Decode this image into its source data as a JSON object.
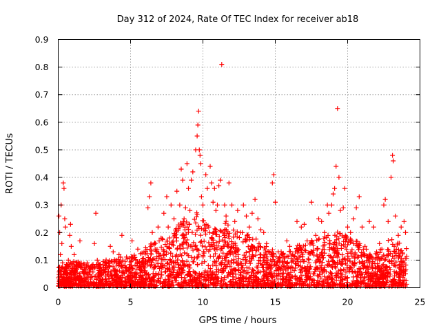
{
  "chart_data": {
    "type": "scatter",
    "title": "Day 312 of 2024, Rate Of TEC Index for receiver ab18",
    "xlabel": "GPS time / hours",
    "ylabel": "ROTI / TECUs",
    "xlim": [
      0,
      25
    ],
    "ylim": [
      0,
      0.9
    ],
    "xticks": [
      0,
      5,
      10,
      15,
      20,
      25
    ],
    "yticks": [
      0,
      0.1,
      0.2,
      0.3,
      0.4,
      0.5,
      0.6,
      0.7,
      0.8,
      0.9
    ],
    "xtick_labels": [
      "0",
      "5",
      "10",
      "15",
      "20",
      "25"
    ],
    "ytick_labels": [
      "0",
      "0.1",
      "0.2",
      "0.3",
      "0.4",
      "0.5",
      "0.6",
      "0.7",
      "0.8",
      "0.9"
    ],
    "grid": true,
    "marker": "plus",
    "marker_color": "#ff0000",
    "series": [
      {
        "values": [
          [
            0.05,
            0.26
          ],
          [
            0.1,
            0.2
          ],
          [
            0.15,
            0.12
          ],
          [
            0.2,
            0.3
          ],
          [
            0.25,
            0.16
          ],
          [
            0.3,
            0.09
          ],
          [
            0.35,
            0.38
          ],
          [
            0.4,
            0.36
          ],
          [
            0.45,
            0.25
          ],
          [
            0.5,
            0.22
          ],
          [
            0.55,
            0.05
          ],
          [
            0.6,
            0.03
          ],
          [
            0.7,
            0.1
          ],
          [
            0.8,
            0.19
          ],
          [
            0.85,
            0.23
          ],
          [
            0.9,
            0.15
          ],
          [
            1.0,
            0.07
          ],
          [
            1.1,
            0.12
          ],
          [
            1.2,
            0.06
          ],
          [
            1.3,
            0.04
          ],
          [
            1.5,
            0.17
          ],
          [
            1.6,
            0.08
          ],
          [
            1.8,
            0.05
          ],
          [
            2.0,
            0.09
          ],
          [
            2.2,
            0.07
          ],
          [
            2.5,
            0.16
          ],
          [
            2.6,
            0.27
          ],
          [
            2.7,
            0.1
          ],
          [
            2.9,
            0.06
          ],
          [
            3.0,
            0.05
          ],
          [
            3.3,
            0.08
          ],
          [
            3.6,
            0.15
          ],
          [
            3.8,
            0.13
          ],
          [
            4.0,
            0.1
          ],
          [
            4.2,
            0.12
          ],
          [
            4.4,
            0.19
          ],
          [
            4.6,
            0.08
          ],
          [
            4.9,
            0.06
          ],
          [
            5.1,
            0.17
          ],
          [
            5.3,
            0.11
          ],
          [
            5.5,
            0.14
          ],
          [
            5.8,
            0.09
          ],
          [
            6.0,
            0.1
          ],
          [
            6.2,
            0.29
          ],
          [
            6.3,
            0.33
          ],
          [
            6.4,
            0.38
          ],
          [
            6.5,
            0.2
          ],
          [
            6.7,
            0.14
          ],
          [
            6.9,
            0.22
          ],
          [
            7.1,
            0.18
          ],
          [
            7.3,
            0.27
          ],
          [
            7.5,
            0.33
          ],
          [
            7.6,
            0.22
          ],
          [
            7.8,
            0.3
          ],
          [
            8.0,
            0.25
          ],
          [
            8.2,
            0.35
          ],
          [
            8.4,
            0.3
          ],
          [
            8.5,
            0.43
          ],
          [
            8.6,
            0.39
          ],
          [
            8.7,
            0.25
          ],
          [
            8.8,
            0.29
          ],
          [
            8.9,
            0.45
          ],
          [
            9.0,
            0.36
          ],
          [
            9.1,
            0.28
          ],
          [
            9.2,
            0.39
          ],
          [
            9.3,
            0.42
          ],
          [
            9.5,
            0.5
          ],
          [
            9.6,
            0.55
          ],
          [
            9.65,
            0.59
          ],
          [
            9.7,
            0.64
          ],
          [
            9.75,
            0.5
          ],
          [
            9.8,
            0.48
          ],
          [
            9.85,
            0.45
          ],
          [
            9.9,
            0.33
          ],
          [
            10.0,
            0.3
          ],
          [
            10.2,
            0.41
          ],
          [
            10.3,
            0.36
          ],
          [
            10.4,
            0.22
          ],
          [
            10.5,
            0.44
          ],
          [
            10.6,
            0.38
          ],
          [
            10.7,
            0.31
          ],
          [
            10.8,
            0.36
          ],
          [
            10.9,
            0.28
          ],
          [
            11.0,
            0.3
          ],
          [
            11.1,
            0.37
          ],
          [
            11.2,
            0.39
          ],
          [
            11.3,
            0.81
          ],
          [
            11.4,
            0.2
          ],
          [
            11.5,
            0.3
          ],
          [
            11.6,
            0.26
          ],
          [
            11.8,
            0.38
          ],
          [
            12.0,
            0.3
          ],
          [
            12.2,
            0.24
          ],
          [
            12.4,
            0.28
          ],
          [
            12.6,
            0.2
          ],
          [
            12.8,
            0.3
          ],
          [
            13.0,
            0.26
          ],
          [
            13.2,
            0.22
          ],
          [
            13.4,
            0.27
          ],
          [
            13.6,
            0.32
          ],
          [
            13.8,
            0.25
          ],
          [
            14.0,
            0.21
          ],
          [
            14.2,
            0.2
          ],
          [
            14.4,
            0.16
          ],
          [
            14.6,
            0.13
          ],
          [
            14.8,
            0.38
          ],
          [
            14.9,
            0.41
          ],
          [
            15.0,
            0.31
          ],
          [
            15.2,
            0.13
          ],
          [
            15.5,
            0.12
          ],
          [
            15.8,
            0.17
          ],
          [
            16.0,
            0.15
          ],
          [
            16.2,
            0.12
          ],
          [
            16.5,
            0.24
          ],
          [
            16.8,
            0.22
          ],
          [
            17.0,
            0.23
          ],
          [
            17.2,
            0.17
          ],
          [
            17.5,
            0.31
          ],
          [
            17.8,
            0.19
          ],
          [
            18.0,
            0.25
          ],
          [
            18.2,
            0.24
          ],
          [
            18.4,
            0.2
          ],
          [
            18.6,
            0.3
          ],
          [
            18.7,
            0.27
          ],
          [
            18.9,
            0.3
          ],
          [
            19.0,
            0.34
          ],
          [
            19.1,
            0.36
          ],
          [
            19.2,
            0.44
          ],
          [
            19.3,
            0.65
          ],
          [
            19.4,
            0.4
          ],
          [
            19.5,
            0.28
          ],
          [
            19.7,
            0.29
          ],
          [
            19.8,
            0.36
          ],
          [
            20.0,
            0.22
          ],
          [
            20.2,
            0.2
          ],
          [
            20.4,
            0.25
          ],
          [
            20.6,
            0.29
          ],
          [
            20.8,
            0.33
          ],
          [
            21.0,
            0.22
          ],
          [
            21.2,
            0.15
          ],
          [
            21.5,
            0.24
          ],
          [
            21.8,
            0.22
          ],
          [
            22.0,
            0.13
          ],
          [
            22.2,
            0.16
          ],
          [
            22.5,
            0.3
          ],
          [
            22.6,
            0.32
          ],
          [
            22.8,
            0.24
          ],
          [
            23.0,
            0.4
          ],
          [
            23.1,
            0.48
          ],
          [
            23.15,
            0.46
          ],
          [
            23.3,
            0.26
          ],
          [
            23.5,
            0.19
          ],
          [
            23.7,
            0.22
          ],
          [
            23.9,
            0.24
          ],
          [
            24.0,
            0.2
          ]
        ]
      }
    ],
    "dense_band": {
      "note": "",
      "envelope": [
        [
          0,
          0.07
        ],
        [
          0.5,
          0.08
        ],
        [
          1,
          0.09
        ],
        [
          1.5,
          0.09
        ],
        [
          2,
          0.08
        ],
        [
          2.5,
          0.09
        ],
        [
          3,
          0.09
        ],
        [
          3.5,
          0.1
        ],
        [
          4,
          0.1
        ],
        [
          4.5,
          0.11
        ],
        [
          5,
          0.11
        ],
        [
          5.5,
          0.12
        ],
        [
          6,
          0.14
        ],
        [
          6.5,
          0.16
        ],
        [
          7,
          0.17
        ],
        [
          7.5,
          0.18
        ],
        [
          8,
          0.2
        ],
        [
          8.5,
          0.24
        ],
        [
          9,
          0.25
        ],
        [
          9.5,
          0.27
        ],
        [
          10,
          0.25
        ],
        [
          10.5,
          0.22
        ],
        [
          11,
          0.21
        ],
        [
          11.5,
          0.24
        ],
        [
          12,
          0.22
        ],
        [
          12.5,
          0.2
        ],
        [
          13,
          0.19
        ],
        [
          13.5,
          0.18
        ],
        [
          14,
          0.16
        ],
        [
          14.5,
          0.14
        ],
        [
          15,
          0.13
        ],
        [
          15.5,
          0.13
        ],
        [
          16,
          0.13
        ],
        [
          16.5,
          0.15
        ],
        [
          17,
          0.16
        ],
        [
          17.5,
          0.17
        ],
        [
          18,
          0.18
        ],
        [
          18.5,
          0.19
        ],
        [
          19,
          0.2
        ],
        [
          19.5,
          0.2
        ],
        [
          20,
          0.18
        ],
        [
          20.5,
          0.17
        ],
        [
          21,
          0.15
        ],
        [
          21.5,
          0.14
        ],
        [
          22,
          0.12
        ],
        [
          22.5,
          0.15
        ],
        [
          23,
          0.18
        ],
        [
          23.5,
          0.16
        ],
        [
          24,
          0.14
        ]
      ]
    }
  }
}
